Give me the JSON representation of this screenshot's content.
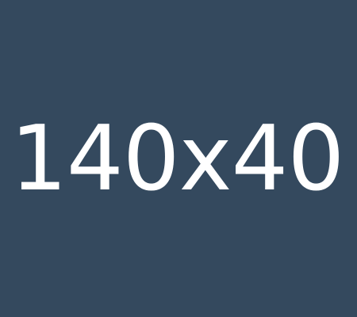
{
  "placeholder": {
    "label": "140x40",
    "background_color": "#34495e",
    "text_color": "#ffffff"
  }
}
